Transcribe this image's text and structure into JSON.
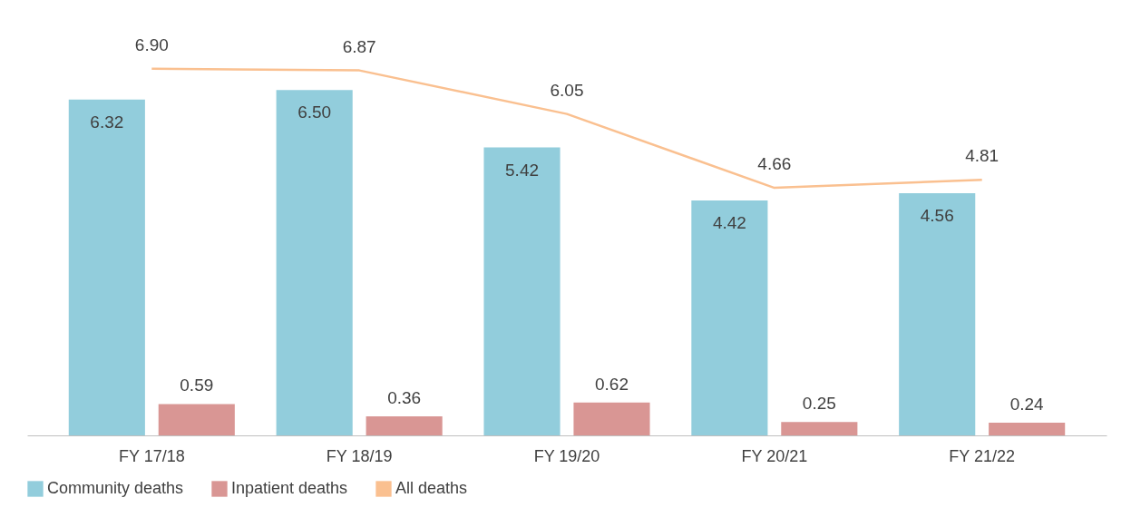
{
  "chart_data": {
    "type": "bar",
    "categories": [
      "FY 17/18",
      "FY 18/19",
      "FY 19/20",
      "FY 20/21",
      "FY 21/22"
    ],
    "series": [
      {
        "name": "Community deaths",
        "color": "#92cddc",
        "values": [
          6.32,
          6.5,
          5.42,
          4.42,
          4.56
        ],
        "value_labels": [
          "6.32",
          "6.50",
          "5.42",
          "4.42",
          "4.56"
        ]
      },
      {
        "name": "Inpatient deaths",
        "color": "#d99694",
        "values": [
          0.59,
          0.36,
          0.62,
          0.25,
          0.24
        ],
        "value_labels": [
          "0.59",
          "0.36",
          "0.62",
          "0.25",
          "0.24"
        ]
      },
      {
        "name": "All deaths",
        "type": "line",
        "color": "#fac090",
        "values": [
          6.9,
          6.87,
          6.05,
          4.66,
          4.81
        ],
        "value_labels": [
          "6.90",
          "6.87",
          "6.05",
          "4.66",
          "4.81"
        ]
      }
    ],
    "legend": "bottom",
    "tick_labels": "x"
  }
}
